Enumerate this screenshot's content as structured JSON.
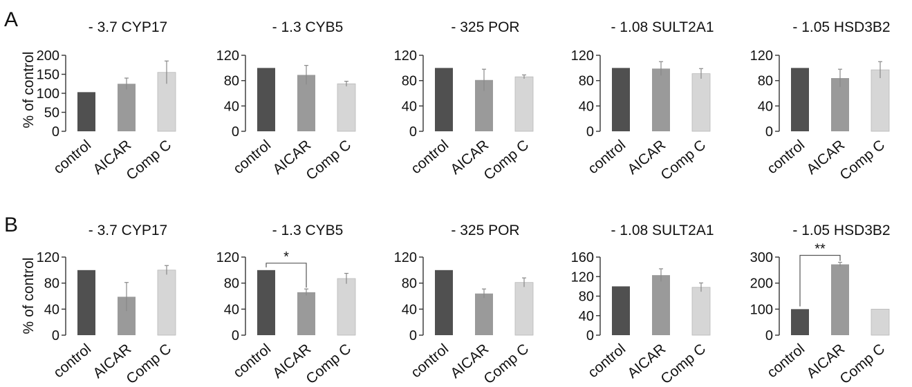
{
  "figure": {
    "panels": [
      {
        "letter": "A",
        "ylabel": "% of control"
      },
      {
        "letter": "B",
        "ylabel": "% of control"
      }
    ]
  },
  "chart_data": [
    {
      "type": "bar",
      "panel": "A",
      "title": "- 3.7 CYP17",
      "categories": [
        "control",
        "AICAR",
        "Comp C"
      ],
      "values": [
        103,
        125,
        155
      ],
      "errors": [
        0,
        15,
        30
      ],
      "ylim": [
        0,
        200
      ],
      "yticks": [
        0,
        50,
        100,
        150,
        200
      ],
      "colors": [
        "#505050",
        "#9a9a9a",
        "#d6d6d6"
      ],
      "significance": []
    },
    {
      "type": "bar",
      "panel": "A",
      "title": "- 1.3 CYB5",
      "categories": [
        "control",
        "AICAR",
        "Comp C"
      ],
      "values": [
        100,
        89,
        75
      ],
      "errors": [
        0,
        15,
        4
      ],
      "ylim": [
        0,
        120
      ],
      "yticks": [
        0,
        40,
        80,
        120
      ],
      "colors": [
        "#505050",
        "#9a9a9a",
        "#d6d6d6"
      ],
      "significance": []
    },
    {
      "type": "bar",
      "panel": "A",
      "title": "- 325 POR",
      "categories": [
        "control",
        "AICAR",
        "Comp C"
      ],
      "values": [
        100,
        81,
        86
      ],
      "errors": [
        0,
        17,
        3
      ],
      "ylim": [
        0,
        120
      ],
      "yticks": [
        0,
        40,
        80,
        120
      ],
      "colors": [
        "#505050",
        "#9a9a9a",
        "#d6d6d6"
      ],
      "significance": []
    },
    {
      "type": "bar",
      "panel": "A",
      "title": "- 1.08 SULT2A1",
      "categories": [
        "control",
        "AICAR",
        "Comp C"
      ],
      "values": [
        100,
        99,
        91
      ],
      "errors": [
        0,
        11,
        8
      ],
      "ylim": [
        0,
        120
      ],
      "yticks": [
        0,
        40,
        80,
        120
      ],
      "colors": [
        "#505050",
        "#9a9a9a",
        "#d6d6d6"
      ],
      "significance": []
    },
    {
      "type": "bar",
      "panel": "A",
      "title": "- 1.05 HSD3B2",
      "categories": [
        "control",
        "AICAR",
        "Comp C"
      ],
      "values": [
        100,
        84,
        97
      ],
      "errors": [
        0,
        14,
        13
      ],
      "ylim": [
        0,
        120
      ],
      "yticks": [
        0,
        40,
        80,
        120
      ],
      "colors": [
        "#505050",
        "#9a9a9a",
        "#d6d6d6"
      ],
      "significance": []
    },
    {
      "type": "bar",
      "panel": "B",
      "title": "- 3.7 CYP17",
      "categories": [
        "control",
        "AICAR",
        "Comp C"
      ],
      "values": [
        100,
        59,
        100
      ],
      "errors": [
        0,
        22,
        7
      ],
      "ylim": [
        0,
        120
      ],
      "yticks": [
        0,
        40,
        80,
        120
      ],
      "colors": [
        "#505050",
        "#9a9a9a",
        "#d6d6d6"
      ],
      "significance": []
    },
    {
      "type": "bar",
      "panel": "B",
      "title": "- 1.3 CYB5",
      "categories": [
        "control",
        "AICAR",
        "Comp C"
      ],
      "values": [
        100,
        66,
        87
      ],
      "errors": [
        0,
        5,
        8
      ],
      "ylim": [
        0,
        120
      ],
      "yticks": [
        0,
        40,
        80,
        120
      ],
      "colors": [
        "#505050",
        "#9a9a9a",
        "#d6d6d6"
      ],
      "significance": [
        {
          "from": 0,
          "to": 1,
          "label": "*"
        }
      ]
    },
    {
      "type": "bar",
      "panel": "B",
      "title": "- 325 POR",
      "categories": [
        "control",
        "AICAR",
        "Comp C"
      ],
      "values": [
        100,
        64,
        81
      ],
      "errors": [
        0,
        7,
        7
      ],
      "ylim": [
        0,
        120
      ],
      "yticks": [
        0,
        40,
        80,
        120
      ],
      "colors": [
        "#505050",
        "#9a9a9a",
        "#d6d6d6"
      ],
      "significance": []
    },
    {
      "type": "bar",
      "panel": "B",
      "title": "- 1.08 SULT2A1",
      "categories": [
        "control",
        "AICAR",
        "Comp C"
      ],
      "values": [
        100,
        123,
        98
      ],
      "errors": [
        0,
        13,
        9
      ],
      "ylim": [
        0,
        160
      ],
      "yticks": [
        0,
        40,
        80,
        120,
        160
      ],
      "colors": [
        "#505050",
        "#9a9a9a",
        "#d6d6d6"
      ],
      "significance": []
    },
    {
      "type": "bar",
      "panel": "B",
      "title": "- 1.05 HSD3B2",
      "categories": [
        "control",
        "AICAR",
        "Comp C"
      ],
      "values": [
        100,
        272,
        100
      ],
      "errors": [
        0,
        8,
        0
      ],
      "ylim": [
        0,
        300
      ],
      "yticks": [
        0,
        100,
        200,
        300
      ],
      "colors": [
        "#505050",
        "#9a9a9a",
        "#d6d6d6"
      ],
      "significance": [
        {
          "from": 0,
          "to": 1,
          "label": "**"
        }
      ]
    }
  ]
}
